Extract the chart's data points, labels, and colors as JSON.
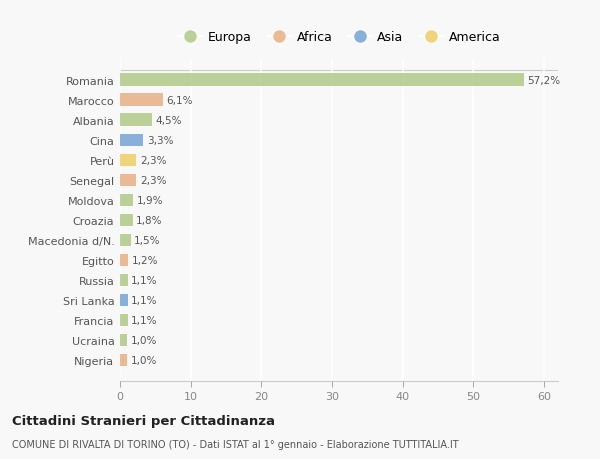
{
  "countries": [
    "Romania",
    "Marocco",
    "Albania",
    "Cina",
    "Perù",
    "Senegal",
    "Moldova",
    "Croazia",
    "Macedonia d/N.",
    "Egitto",
    "Russia",
    "Sri Lanka",
    "Francia",
    "Ucraina",
    "Nigeria"
  ],
  "values": [
    57.2,
    6.1,
    4.5,
    3.3,
    2.3,
    2.3,
    1.9,
    1.8,
    1.5,
    1.2,
    1.1,
    1.1,
    1.1,
    1.0,
    1.0
  ],
  "labels": [
    "57,2%",
    "6,1%",
    "4,5%",
    "3,3%",
    "2,3%",
    "2,3%",
    "1,9%",
    "1,8%",
    "1,5%",
    "1,2%",
    "1,1%",
    "1,1%",
    "1,1%",
    "1,0%",
    "1,0%"
  ],
  "continents": [
    "Europa",
    "Africa",
    "Europa",
    "Asia",
    "America",
    "Africa",
    "Europa",
    "Europa",
    "Europa",
    "Africa",
    "Europa",
    "Asia",
    "Europa",
    "Europa",
    "Africa"
  ],
  "colors": {
    "Europa": "#b5cc8e",
    "Africa": "#e8b48a",
    "Asia": "#7ca8d5",
    "America": "#f0d070"
  },
  "background_color": "#f8f8f8",
  "plot_bg_color": "#f8f8f8",
  "grid_color": "#ffffff",
  "title": "Cittadini Stranieri per Cittadinanza",
  "subtitle": "COMUNE DI RIVALTA DI TORINO (TO) - Dati ISTAT al 1° gennaio - Elaborazione TUTTITALIA.IT",
  "xlim": [
    0,
    62
  ],
  "xticks": [
    0,
    10,
    20,
    30,
    40,
    50,
    60
  ],
  "legend_order": [
    "Europa",
    "Africa",
    "Asia",
    "America"
  ]
}
